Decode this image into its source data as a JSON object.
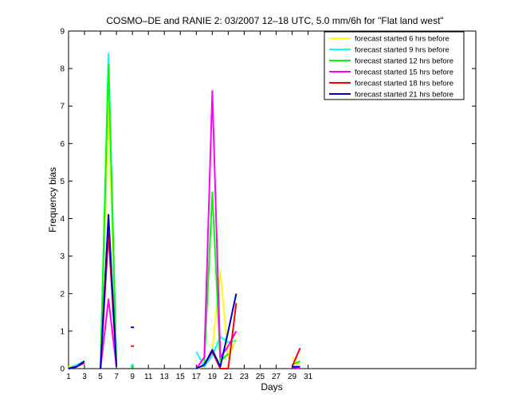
{
  "chart_data": {
    "type": "line",
    "title": "COSMO–DE and RANIE 2: 03/2007 12–18 UTC, 5.0 mm/6h for \"Flat land west\"",
    "xlabel": "Days",
    "ylabel": "Frequency bias",
    "xlim": [
      1,
      52
    ],
    "ylim": [
      0,
      9
    ],
    "xticks": [
      1,
      3,
      5,
      7,
      9,
      11,
      13,
      15,
      17,
      19,
      21,
      23,
      25,
      27,
      29,
      31
    ],
    "yticks": [
      0,
      1,
      2,
      3,
      4,
      5,
      6,
      7,
      8,
      9
    ],
    "grid": false,
    "legend_position": "top-right",
    "series": [
      {
        "name": "forecast started 6 hrs before",
        "color": "#ffff00",
        "segments": [
          [
            [
              1,
              0.05
            ],
            [
              2,
              0.1
            ],
            [
              3,
              0.15
            ]
          ],
          [
            [
              5,
              0.0
            ],
            [
              6,
              7.0
            ],
            [
              7,
              0.1
            ]
          ],
          [
            [
              17,
              0.0
            ],
            [
              18,
              0.05
            ],
            [
              19,
              0.5
            ],
            [
              20,
              2.6
            ],
            [
              21,
              0.3
            ],
            [
              22,
              0.8
            ]
          ],
          [
            [
              29,
              0.3
            ],
            [
              30,
              0.1
            ]
          ]
        ]
      },
      {
        "name": "forecast started 9 hrs before",
        "color": "#00ffff",
        "segments": [
          [
            [
              1,
              0.0
            ],
            [
              2,
              0.1
            ],
            [
              3,
              0.2
            ]
          ],
          [
            [
              5,
              0.0
            ],
            [
              6,
              8.4
            ],
            [
              7,
              0.05
            ]
          ],
          [
            [
              9,
              0.1
            ]
          ],
          [
            [
              17,
              0.45
            ],
            [
              18,
              0.05
            ],
            [
              19,
              0.35
            ],
            [
              20,
              0.85
            ],
            [
              21,
              0.7
            ],
            [
              22,
              0.75
            ]
          ]
        ]
      },
      {
        "name": "forecast started 12 hrs before",
        "color": "#00ff00",
        "segments": [
          [
            [
              1,
              0.0
            ],
            [
              2,
              0.05
            ],
            [
              3,
              0.15
            ]
          ],
          [
            [
              5,
              0.0
            ],
            [
              6,
              8.1
            ],
            [
              7,
              0.05
            ]
          ],
          [
            [
              9,
              0.05
            ]
          ],
          [
            [
              17,
              0.0
            ],
            [
              18,
              0.1
            ],
            [
              19,
              4.7
            ],
            [
              20,
              0.2
            ],
            [
              21,
              0.4
            ]
          ],
          [
            [
              29,
              0.1
            ],
            [
              30,
              0.2
            ]
          ]
        ]
      },
      {
        "name": "forecast started 15 hrs before",
        "color": "#ff00ff",
        "segments": [
          [
            [
              1,
              0.0
            ],
            [
              2,
              0.05
            ],
            [
              3,
              0.15
            ]
          ],
          [
            [
              5,
              0.0
            ],
            [
              6,
              1.85
            ],
            [
              7,
              0.05
            ]
          ],
          [
            [
              17,
              0.0
            ],
            [
              18,
              0.3
            ],
            [
              19,
              7.4
            ],
            [
              20,
              0.3
            ],
            [
              21,
              0.6
            ],
            [
              22,
              1.0
            ]
          ],
          [
            [
              29,
              0.05
            ],
            [
              30,
              0.0
            ]
          ]
        ]
      },
      {
        "name": "forecast started 18 hrs before",
        "color": "#ff0000",
        "segments": [
          [
            [
              1,
              0.0
            ],
            [
              2,
              0.05
            ],
            [
              3,
              0.15
            ]
          ],
          [
            [
              5,
              0.0
            ],
            [
              6,
              3.6
            ],
            [
              7,
              0.05
            ]
          ],
          [
            [
              9,
              0.6
            ]
          ],
          [
            [
              17,
              0.0
            ],
            [
              18,
              0.1
            ],
            [
              19,
              0.45
            ],
            [
              20,
              0.0
            ],
            [
              21,
              0.0
            ],
            [
              22,
              1.75
            ]
          ],
          [
            [
              29,
              0.05
            ],
            [
              30,
              0.55
            ]
          ]
        ]
      },
      {
        "name": "forecast started 21 hrs before",
        "color": "#0000cc",
        "segments": [
          [
            [
              1,
              0.0
            ],
            [
              2,
              0.05
            ],
            [
              3,
              0.2
            ]
          ],
          [
            [
              5,
              0.0
            ],
            [
              6,
              4.1
            ],
            [
              7,
              0.05
            ]
          ],
          [
            [
              9,
              1.1
            ]
          ],
          [
            [
              17,
              0.0
            ],
            [
              18,
              0.1
            ],
            [
              19,
              0.5
            ],
            [
              20,
              0.05
            ],
            [
              21,
              1.0
            ],
            [
              22,
              2.0
            ]
          ],
          [
            [
              29,
              0.05
            ],
            [
              30,
              0.05
            ]
          ]
        ]
      }
    ]
  }
}
